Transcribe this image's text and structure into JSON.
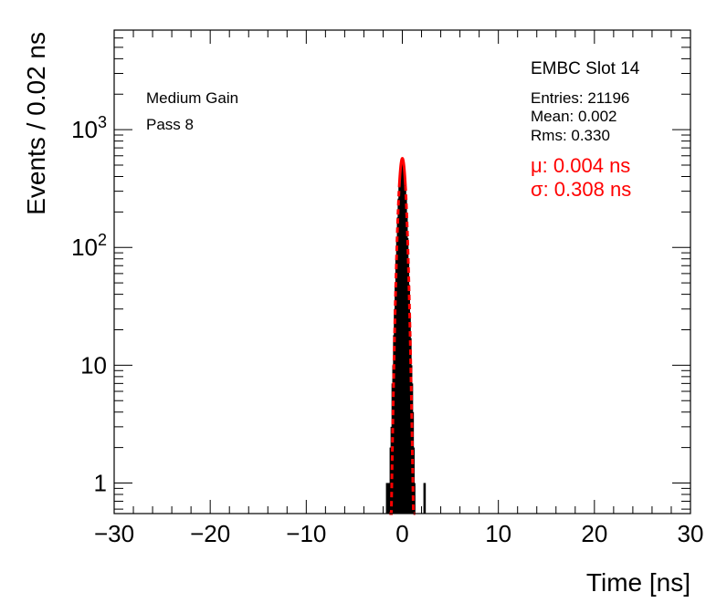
{
  "chart_data": {
    "type": "histogram",
    "xlabel": "Time [ns]",
    "ylabel": "Events / 0.02 ns",
    "xlim": [
      -30,
      30
    ],
    "ylim": [
      0.55,
      7000
    ],
    "yscale": "log",
    "x_ticks": [
      -30,
      -20,
      -10,
      0,
      10,
      20,
      30
    ],
    "x_tick_labels": [
      "−30",
      "−20",
      "−10",
      "0",
      "10",
      "20",
      "30"
    ],
    "y_ticks": [
      {
        "value": 1,
        "base": "1",
        "exp": ""
      },
      {
        "value": 10,
        "base": "10",
        "exp": ""
      },
      {
        "value": 100,
        "base": "10",
        "exp": "2"
      },
      {
        "value": 1000,
        "base": "10",
        "exp": "3"
      }
    ],
    "grid": false,
    "histogram": {
      "color": "#000000",
      "bins": [
        {
          "x": -1.58,
          "y": 1
        },
        {
          "x": -1.38,
          "y": 1
        },
        {
          "x": -1.3,
          "y": 1
        },
        {
          "x": -1.2,
          "y": 2
        },
        {
          "x": -1.1,
          "y": 3
        },
        {
          "x": -1.0,
          "y": 7
        },
        {
          "x": -0.92,
          "y": 10
        },
        {
          "x": -0.84,
          "y": 18
        },
        {
          "x": -0.76,
          "y": 30
        },
        {
          "x": -0.68,
          "y": 50
        },
        {
          "x": -0.6,
          "y": 80
        },
        {
          "x": -0.52,
          "y": 120
        },
        {
          "x": -0.44,
          "y": 180
        },
        {
          "x": -0.36,
          "y": 260
        },
        {
          "x": -0.28,
          "y": 350
        },
        {
          "x": -0.2,
          "y": 440
        },
        {
          "x": -0.12,
          "y": 510
        },
        {
          "x": -0.04,
          "y": 560
        },
        {
          "x": 0.04,
          "y": 570
        },
        {
          "x": 0.12,
          "y": 520
        },
        {
          "x": 0.2,
          "y": 450
        },
        {
          "x": 0.28,
          "y": 360
        },
        {
          "x": 0.36,
          "y": 270
        },
        {
          "x": 0.44,
          "y": 185
        },
        {
          "x": 0.52,
          "y": 120
        },
        {
          "x": 0.6,
          "y": 80
        },
        {
          "x": 0.68,
          "y": 48
        },
        {
          "x": 0.76,
          "y": 28
        },
        {
          "x": 0.84,
          "y": 17
        },
        {
          "x": 0.92,
          "y": 10
        },
        {
          "x": 1.0,
          "y": 7
        },
        {
          "x": 1.08,
          "y": 4
        },
        {
          "x": 1.16,
          "y": 2
        },
        {
          "x": 1.24,
          "y": 1
        },
        {
          "x": 2.32,
          "y": 1
        }
      ]
    },
    "fit": {
      "type": "gaussian",
      "color": "#ff0000",
      "mu": 0.004,
      "sigma": 0.308,
      "amplitude": 570,
      "solid_range": [
        -0.32,
        0.32
      ],
      "dashed_range": [
        -1.35,
        1.35
      ]
    },
    "annotations": {
      "title": "EMBC Slot 14",
      "left_lines": [
        "Medium Gain",
        "Pass 8"
      ],
      "stats": [
        "Entries: 21196",
        "Mean: 0.002",
        "Rms: 0.330"
      ],
      "fit_mu": "μ: 0.004 ns",
      "fit_sigma": "σ: 0.308 ns"
    }
  }
}
